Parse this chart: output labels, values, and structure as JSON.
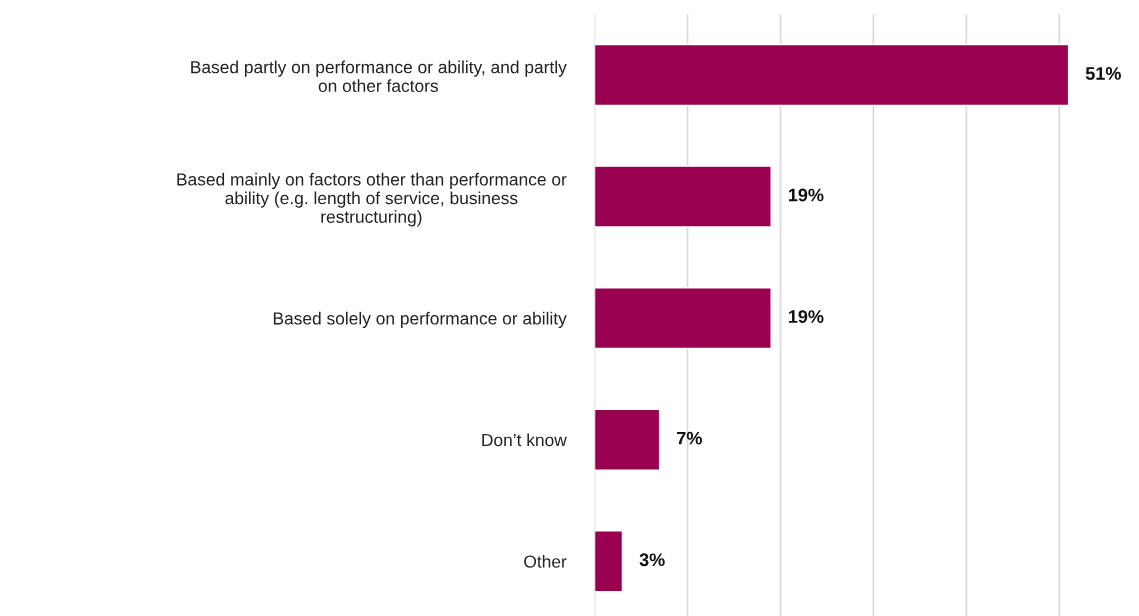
{
  "chart_data": {
    "type": "bar",
    "orientation": "horizontal",
    "categories": [
      "Based partly on performance or ability, and partly on other factors",
      "Based mainly on factors other than performance or ability (e.g. length of service, business restructuring)",
      "Based solely on performance or ability",
      "Don’t know",
      "Other"
    ],
    "values": [
      51,
      19,
      19,
      7,
      3
    ],
    "value_labels": [
      "51%",
      "19%",
      "19%",
      "7%",
      "3%"
    ],
    "color": "#990050",
    "xticks": [
      {
        "value": 0,
        "label": null
      },
      {
        "value": 10,
        "label": null
      },
      {
        "value": 20,
        "label": null
      },
      {
        "value": 30,
        "label": null
      },
      {
        "value": 40,
        "label": null
      },
      {
        "value": 50,
        "label": null
      }
    ],
    "tick_labels": "y",
    "grid": "x",
    "legend": false
  }
}
